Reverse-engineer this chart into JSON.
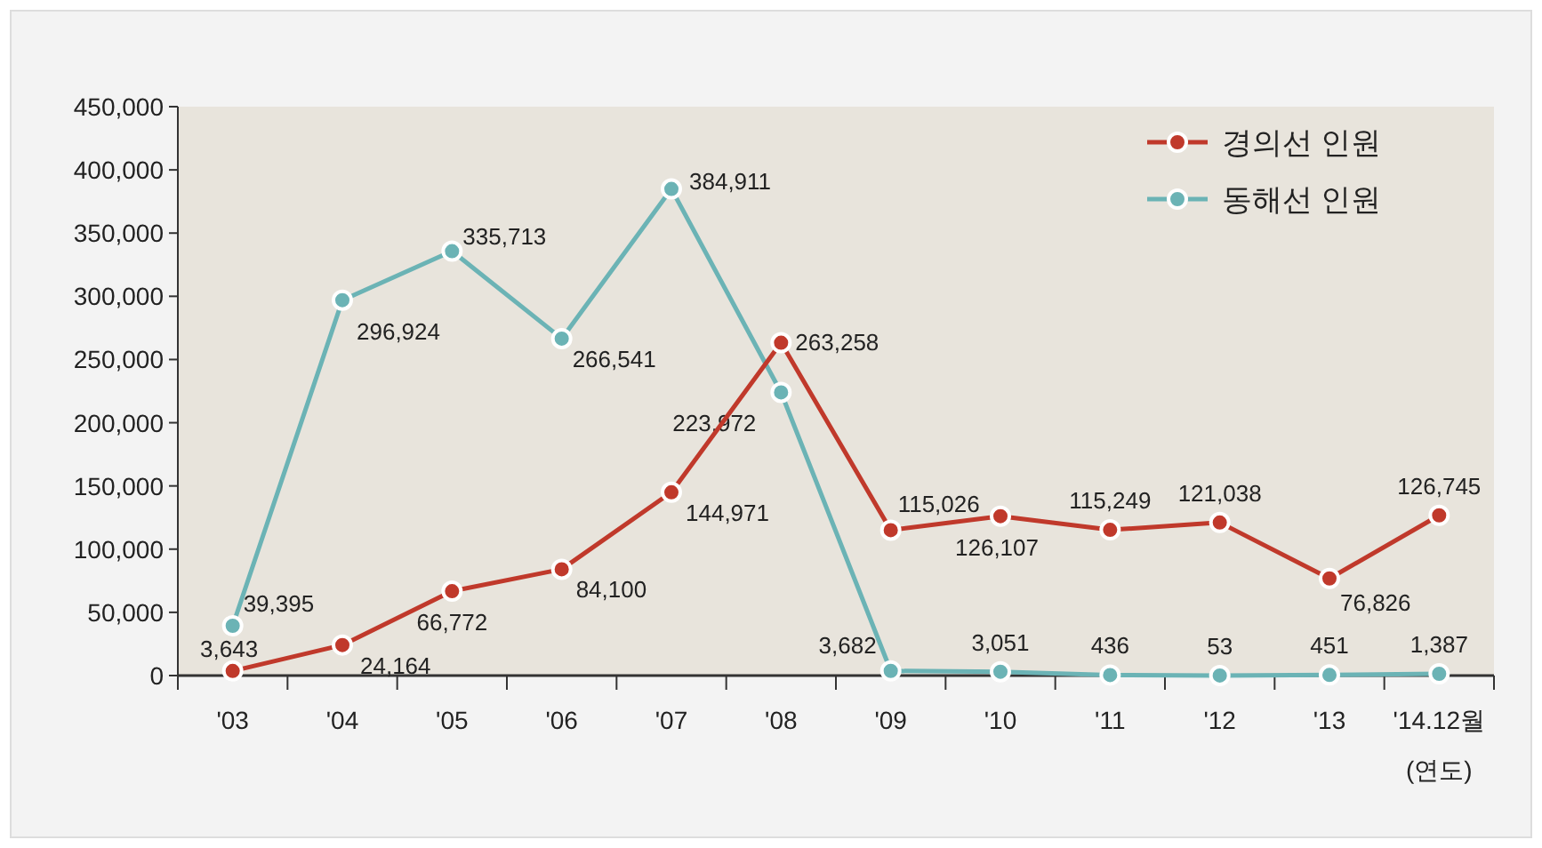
{
  "chart_data": {
    "type": "line",
    "categories": [
      "'03",
      "'04",
      "'05",
      "'06",
      "'07",
      "'08",
      "'09",
      "'10",
      "'11",
      "'12",
      "'13",
      "'14.12월"
    ],
    "xlabel": "(연도)",
    "series": [
      {
        "name": "경의선 인원",
        "color": "#c0392b",
        "values": [
          3643,
          24164,
          66772,
          84100,
          144971,
          263258,
          115026,
          126107,
          115249,
          121038,
          76826,
          126745
        ],
        "value_labels": [
          "3,643",
          "24,164",
          "66,772",
          "84,100",
          "144,971",
          "263,258",
          "115,026",
          "126,107",
          "115,249",
          "121,038",
          "76,826",
          "126,745"
        ]
      },
      {
        "name": "동해선 인원",
        "color": "#6bb3b5",
        "values": [
          39395,
          296924,
          335713,
          266541,
          384911,
          223972,
          3682,
          3051,
          436,
          53,
          451,
          1387
        ],
        "value_labels": [
          "39,395",
          "296,924",
          "335,713",
          "266,541",
          "384,911",
          "223,972",
          "3,682",
          "3,051",
          "436",
          "53",
          "451",
          "1,387"
        ]
      }
    ],
    "ylim": [
      0,
      450000
    ],
    "yticks": [
      {
        "value": 0,
        "label": "0"
      },
      {
        "value": 50000,
        "label": "50,000"
      },
      {
        "value": 100000,
        "label": "100,000"
      },
      {
        "value": 150000,
        "label": "150,000"
      },
      {
        "value": 200000,
        "label": "200,000"
      },
      {
        "value": 250000,
        "label": "250,000"
      },
      {
        "value": 300000,
        "label": "300,000"
      },
      {
        "value": 350000,
        "label": "350,000"
      },
      {
        "value": 400000,
        "label": "400,000"
      },
      {
        "value": 450000,
        "label": "450,000"
      }
    ],
    "grid": false,
    "legend": "top right",
    "marker": "circle",
    "line_style": "solid"
  }
}
